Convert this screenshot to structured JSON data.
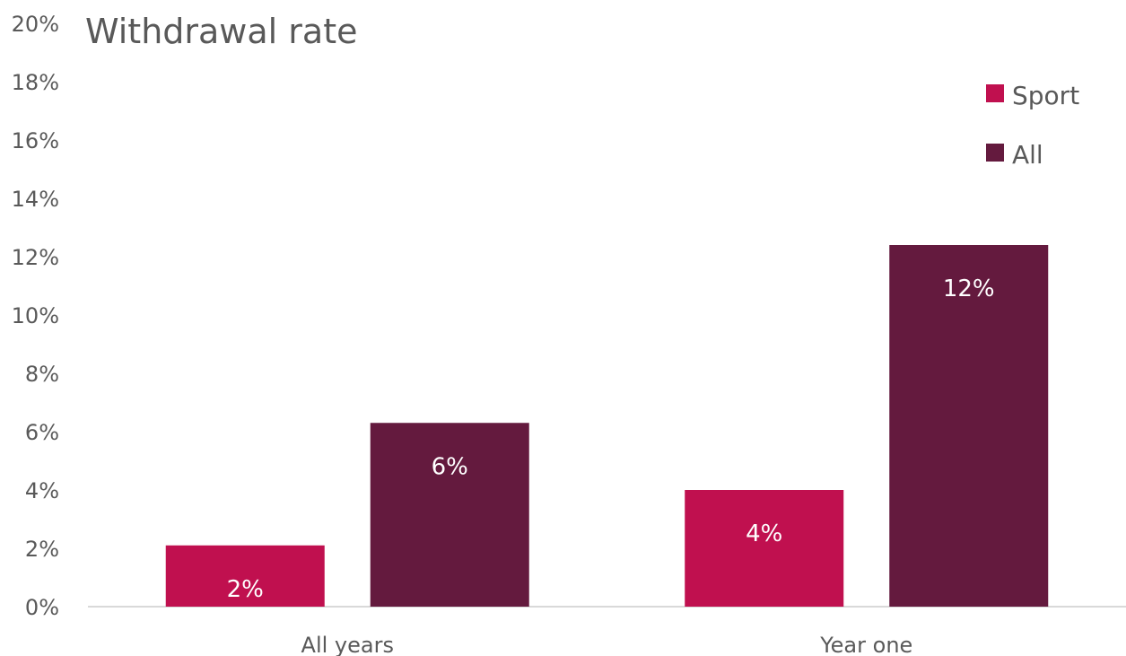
{
  "chart_data": {
    "type": "bar",
    "title": "Withdrawal rate",
    "xlabel": "",
    "ylabel": "",
    "categories": [
      "All years",
      "Year one"
    ],
    "series": [
      {
        "name": "Sport",
        "color": "#C0104F",
        "values": [
          2.1,
          4.0
        ],
        "labels": [
          "2%",
          "4%"
        ]
      },
      {
        "name": "All",
        "color": "#641A3E",
        "values": [
          6.3,
          12.4
        ],
        "labels": [
          "6%",
          "12%"
        ]
      }
    ],
    "ylim": [
      0,
      20
    ],
    "yticks": [
      0,
      2,
      4,
      6,
      8,
      10,
      12,
      14,
      16,
      18,
      20
    ],
    "ytick_labels": [
      "0%",
      "2%",
      "4%",
      "6%",
      "8%",
      "10%",
      "12%",
      "14%",
      "16%",
      "18%",
      "20%"
    ],
    "grid": false,
    "legend_position": "top-right",
    "axis_color": "#D9D9D9",
    "text_color": "#595959"
  }
}
